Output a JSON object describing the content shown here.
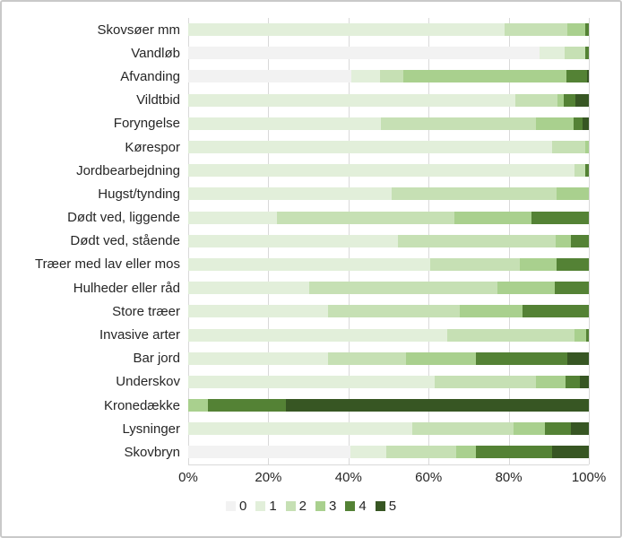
{
  "chart_data": {
    "type": "bar",
    "variant": "horizontal-stacked-100pct",
    "title": "",
    "xlabel": "",
    "ylabel": "",
    "xlim": [
      0,
      100
    ],
    "grid": "vertical major gridlines every 20%",
    "gridline_color": "#d9d9d9",
    "x_ticks": [
      "0%",
      "20%",
      "40%",
      "60%",
      "80%",
      "100%"
    ],
    "categories": [
      "Skovsøer mm",
      "Vandløb",
      "Afvanding",
      "Vildtbid",
      "Foryngelse",
      "Kørespor",
      "Jordbearbejdning",
      "Hugst/tynding",
      "Dødt ved, liggende",
      "Dødt ved, stående",
      "Træer med lav eller mos",
      "Hulheder eller råd",
      "Store træer",
      "Invasive arter",
      "Bar jord",
      "Underskov",
      "Kronedække",
      "Lysninger",
      "Skovbryn"
    ],
    "series": [
      {
        "name": "0",
        "color": "#F2F2F2",
        "values": [
          0,
          87.8,
          40.7,
          0,
          0,
          0,
          0,
          0,
          0,
          0,
          0,
          0,
          0,
          0,
          0,
          0,
          0,
          0,
          40.6
        ]
      },
      {
        "name": "1",
        "color": "#E2EFDA",
        "values": [
          79,
          6.1,
          7.1,
          81.7,
          48.2,
          90.9,
          96.4,
          50.8,
          22.1,
          52.3,
          60.5,
          30.3,
          35,
          64.6,
          35,
          61.6,
          0,
          55.9,
          8.9
        ]
      },
      {
        "name": "2",
        "color": "#C6E0B4",
        "values": [
          15.7,
          5.1,
          6,
          10.5,
          38.5,
          8.2,
          2.8,
          41.1,
          44.3,
          39.5,
          22.2,
          46.8,
          32.8,
          31.9,
          19.3,
          25.1,
          0,
          25.2,
          17.3
        ]
      },
      {
        "name": "3",
        "color": "#A9D08E",
        "values": [
          4.4,
          0,
          40.6,
          1.6,
          9.4,
          0.9,
          0,
          8.1,
          19.2,
          3.8,
          9.3,
          14.5,
          15.6,
          2.8,
          17.5,
          7.5,
          5,
          7.9,
          5
        ]
      },
      {
        "name": "4",
        "color": "#548235",
        "values": [
          0.9,
          1,
          5.1,
          2.8,
          2.3,
          0,
          0.8,
          0,
          14.4,
          4.4,
          8,
          8.4,
          16.6,
          0.7,
          22.8,
          3.6,
          19.3,
          6.5,
          19
        ]
      },
      {
        "name": "5",
        "color": "#375623",
        "values": [
          0,
          0,
          0.5,
          3.4,
          1.6,
          0,
          0,
          0,
          0,
          0,
          0,
          0,
          0,
          0,
          5.4,
          2.2,
          75.7,
          4.5,
          9.2
        ]
      }
    ],
    "legend": {
      "position": "bottom",
      "labels": [
        "0",
        "1",
        "2",
        "3",
        "4",
        "5"
      ]
    }
  }
}
